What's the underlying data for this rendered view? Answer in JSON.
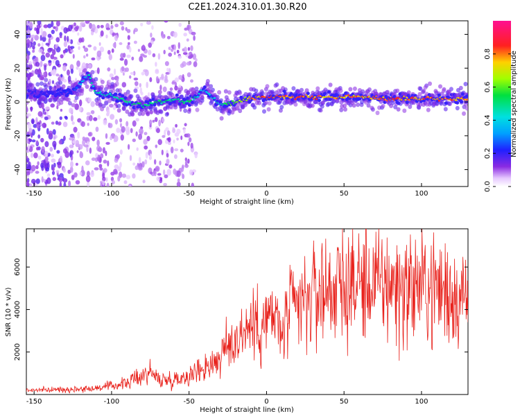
{
  "figure_title": "C2E1.2024.310.01.30.R20",
  "colors": {
    "snr_line": "#e8201a",
    "axis": "#000000",
    "background": "#ffffff"
  },
  "chart_data": [
    {
      "type": "heatmap",
      "title": "C2E1.2024.310.01.30.R20",
      "xlabel": "Height of straight line (km)",
      "ylabel": "Frequency (Hz)",
      "xlim": [
        -155,
        130
      ],
      "ylim": [
        -50,
        48
      ],
      "xticks": [
        -150,
        -100,
        -50,
        0,
        50,
        100
      ],
      "yticks": [
        -40,
        -20,
        0,
        20,
        40
      ],
      "grid": false,
      "colorbar": {
        "label": "Normalized spectral amplitude",
        "range": [
          0,
          1
        ],
        "ticks": [
          0.0,
          0.2,
          0.4,
          0.6,
          0.8
        ],
        "colormap": "rainbow (white-purple-blue-cyan-green-yellow-red-magenta)"
      },
      "ridge": [
        {
          "x": -150,
          "y": 5,
          "amp": 0.15
        },
        {
          "x": -125,
          "y": 6,
          "amp": 0.25
        },
        {
          "x": -115,
          "y": 16,
          "amp": 0.45
        },
        {
          "x": -110,
          "y": 5,
          "amp": 0.5
        },
        {
          "x": -100,
          "y": 4,
          "amp": 0.5
        },
        {
          "x": -90,
          "y": 0,
          "amp": 0.5
        },
        {
          "x": -80,
          "y": -2,
          "amp": 0.55
        },
        {
          "x": -70,
          "y": 0,
          "amp": 0.55
        },
        {
          "x": -60,
          "y": 1,
          "amp": 0.5
        },
        {
          "x": -50,
          "y": 0,
          "amp": 0.55
        },
        {
          "x": -40,
          "y": 7,
          "amp": 0.4
        },
        {
          "x": -30,
          "y": -2,
          "amp": 0.5
        },
        {
          "x": -20,
          "y": 0,
          "amp": 0.65
        },
        {
          "x": -10,
          "y": 2,
          "amp": 0.8
        },
        {
          "x": 0,
          "y": 3,
          "amp": 0.85
        },
        {
          "x": 20,
          "y": 3,
          "amp": 0.85
        },
        {
          "x": 40,
          "y": 3,
          "amp": 0.8
        },
        {
          "x": 60,
          "y": 3,
          "amp": 0.8
        },
        {
          "x": 80,
          "y": 2,
          "amp": 0.85
        },
        {
          "x": 100,
          "y": 2,
          "amp": 0.85
        },
        {
          "x": 120,
          "y": 2,
          "amp": 0.85
        },
        {
          "x": 130,
          "y": 2,
          "amp": 0.85
        }
      ]
    },
    {
      "type": "line",
      "xlabel": "Height of straight line (km)",
      "ylabel": "SNR (10 * v/v)",
      "xlim": [
        -155,
        130
      ],
      "ylim": [
        0,
        7800
      ],
      "xticks": [
        -150,
        -100,
        -50,
        0,
        50,
        100
      ],
      "yticks": [
        2000,
        4000,
        6000
      ],
      "grid": false,
      "series": [
        {
          "x": [
            -155,
            -140,
            -125,
            -110,
            -100,
            -90,
            -80,
            -75,
            -70,
            -60,
            -50,
            -40,
            -30,
            -25,
            -20,
            -15,
            -10,
            -5,
            0,
            5,
            10,
            15,
            20,
            25,
            30,
            35,
            40,
            50,
            60,
            70,
            80,
            90,
            100,
            110,
            120,
            130
          ],
          "values": [
            200,
            220,
            250,
            300,
            400,
            550,
            900,
            1100,
            700,
            700,
            900,
            1300,
            1700,
            2300,
            2600,
            3000,
            3300,
            3200,
            3500,
            3700,
            2800,
            3900,
            4100,
            4300,
            4700,
            4900,
            5000,
            5100,
            5300,
            5200,
            5200,
            5000,
            5100,
            5000,
            4800,
            4500
          ]
        }
      ]
    }
  ]
}
